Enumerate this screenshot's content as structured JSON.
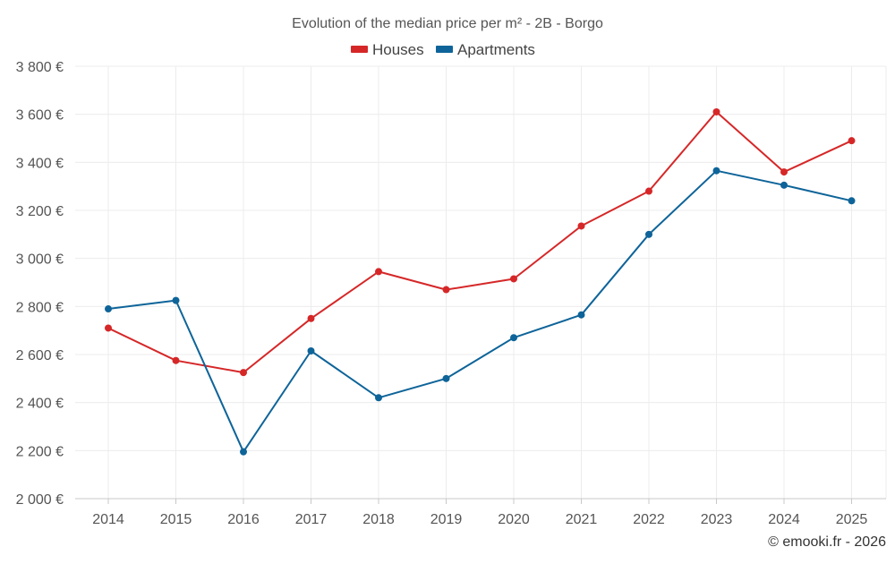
{
  "chart_data": {
    "type": "line",
    "title": "Evolution of the median price per m² - 2B - Borgo",
    "categories": [
      "2014",
      "2015",
      "2016",
      "2017",
      "2018",
      "2019",
      "2020",
      "2021",
      "2022",
      "2023",
      "2024",
      "2025"
    ],
    "series": [
      {
        "name": "Houses",
        "color": "#d62728",
        "values": [
          2710,
          2575,
          2525,
          2750,
          2945,
          2870,
          2915,
          3135,
          3280,
          3610,
          3360,
          3490
        ]
      },
      {
        "name": "Apartments",
        "color": "#0e6499",
        "values": [
          2790,
          2825,
          2195,
          2615,
          2420,
          2500,
          2670,
          2765,
          3100,
          3365,
          3305,
          3240
        ]
      }
    ],
    "ylim": [
      2000,
      3800
    ],
    "yticks": [
      2000,
      2200,
      2400,
      2600,
      2800,
      3000,
      3200,
      3400,
      3600,
      3800
    ],
    "ytick_labels": [
      "2 000 €",
      "2 200 €",
      "2 400 €",
      "2 600 €",
      "2 800 €",
      "3 000 €",
      "3 200 €",
      "3 400 €",
      "3 600 €",
      "3 800 €"
    ],
    "xlabel": "",
    "ylabel": "",
    "legend_position": "top-center",
    "grid": true
  },
  "credit": "© emooki.fr - 2026"
}
